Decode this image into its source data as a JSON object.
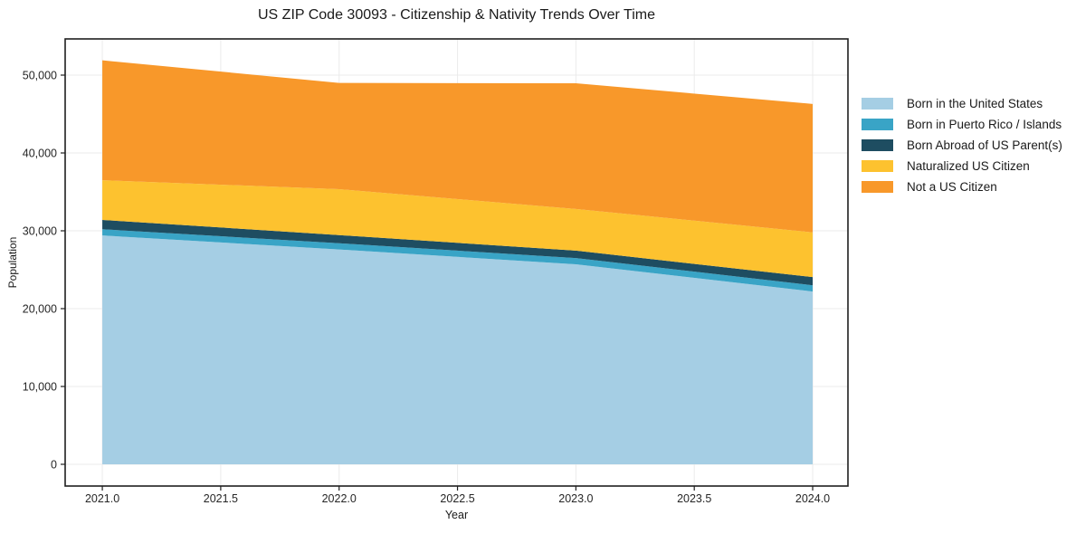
{
  "title": "US ZIP Code 30093 - Citizenship & Nativity Trends Over Time",
  "xlabel": "Year",
  "ylabel": "Population",
  "chart_data": {
    "type": "area",
    "stacked": true,
    "title": "US ZIP Code 30093 - Citizenship & Nativity Trends Over Time",
    "xlabel": "Year",
    "ylabel": "Population",
    "x": [
      2021,
      2022,
      2023,
      2024
    ],
    "series": [
      {
        "name": "Born in the United States",
        "color": "#a5cee4",
        "values": [
          29400,
          27600,
          25700,
          22200
        ]
      },
      {
        "name": "Born in Puerto Rico / Islands",
        "color": "#39a4c6",
        "values": [
          800,
          800,
          800,
          800
        ]
      },
      {
        "name": "Born Abroad of US Parent(s)",
        "color": "#1e4d61",
        "values": [
          1200,
          1050,
          950,
          1050
        ]
      },
      {
        "name": "Naturalized US Citizen",
        "color": "#fdc22f",
        "values": [
          5100,
          5900,
          5350,
          5750
        ]
      },
      {
        "name": "Not a US Citizen",
        "color": "#f8982a",
        "values": [
          15400,
          13650,
          16150,
          16500
        ]
      }
    ],
    "totals": [
      51900,
      49000,
      48950,
      46300
    ],
    "xticks": [
      2021.0,
      2021.5,
      2022.0,
      2022.5,
      2023.0,
      2023.5,
      2024.0
    ],
    "yticks": [
      0,
      10000,
      20000,
      30000,
      40000,
      50000
    ],
    "xlim": [
      2020.843,
      2024.149
    ],
    "ylim": [
      -2791,
      54651
    ],
    "grid": true,
    "grid_color": "#ebebeb",
    "spine_color": "#1f1f1f",
    "tick_text_color": "#262626",
    "legend_position": "right-outside"
  }
}
